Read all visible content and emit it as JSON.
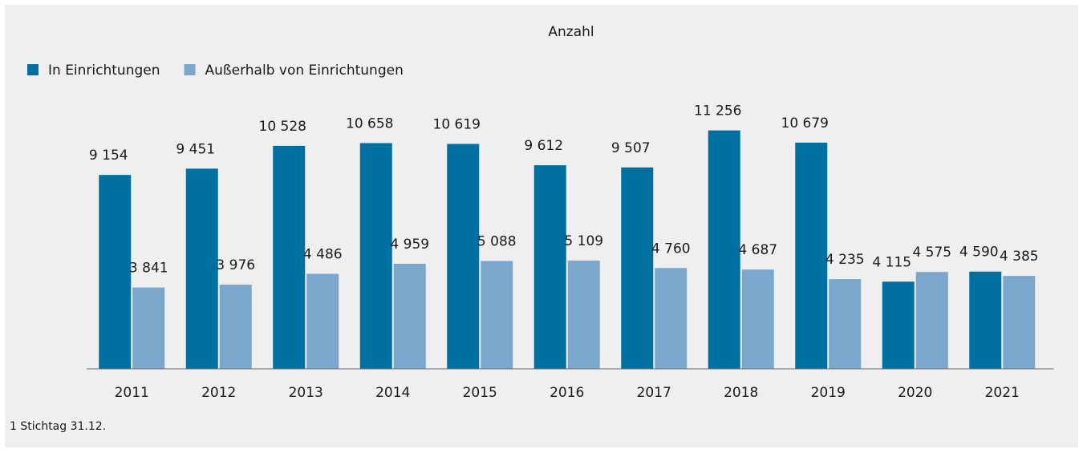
{
  "chart_data": {
    "type": "bar",
    "title": "Anzahl",
    "categories": [
      "2011",
      "2012",
      "2013",
      "2014",
      "2015",
      "2016",
      "2017",
      "2018",
      "2019",
      "2020",
      "2021"
    ],
    "series": [
      {
        "name": "In Einrichtungen",
        "color": "#0070a0",
        "values": [
          9154,
          9451,
          10528,
          10658,
          10619,
          9612,
          9507,
          11256,
          10679,
          4115,
          4590
        ],
        "value_labels": [
          "9 154",
          "9 451",
          "10 528",
          "10 658",
          "10 619",
          "9 612",
          "9 507",
          "11 256",
          "10 679",
          "4 115",
          "4 590"
        ]
      },
      {
        "name": "Außerhalb von Einrichtungen",
        "color": "#7ba7cc",
        "values": [
          3841,
          3976,
          4486,
          4959,
          5088,
          5109,
          4760,
          4687,
          4235,
          4575,
          4385
        ],
        "value_labels": [
          "3 841",
          "3 976",
          "4 486",
          "4 959",
          "5 088",
          "5 109",
          "4 760",
          "4 687",
          "4 235",
          "4 575",
          "4 385"
        ]
      }
    ],
    "ylim": [
      0,
      12000
    ],
    "footnote": "1 Stichtag 31.12."
  }
}
